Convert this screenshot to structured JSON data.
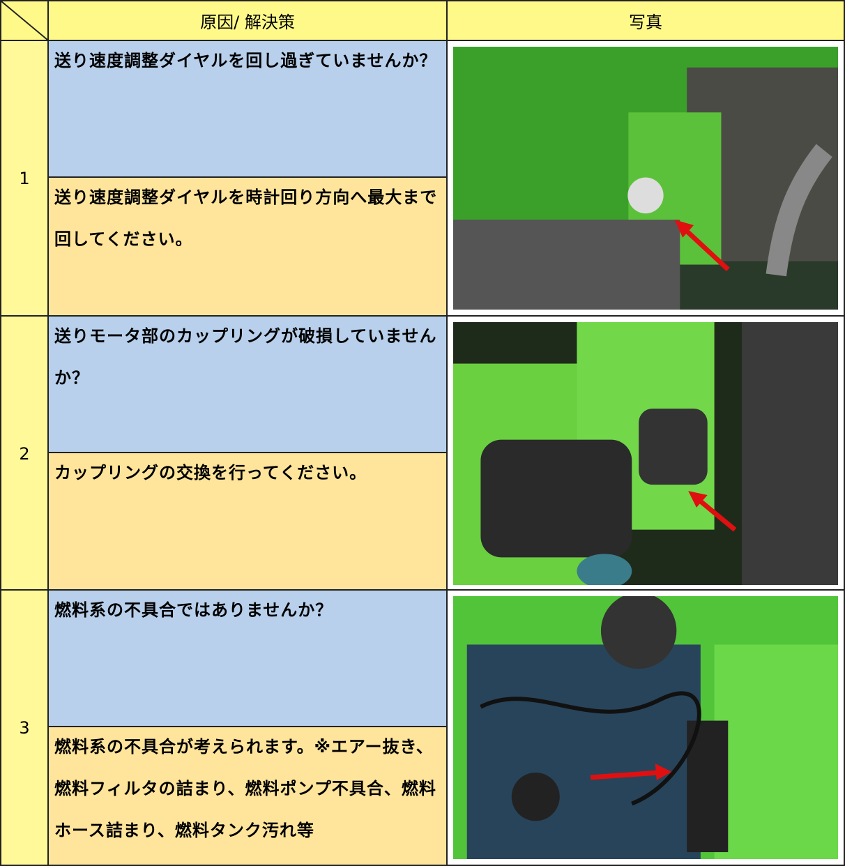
{
  "header": {
    "columns": [
      "原因/ 解決策",
      "写真"
    ]
  },
  "rows": [
    {
      "number": "1",
      "cause": "送り速度調整ダイヤルを回し過ぎていませんか？",
      "solution": "送り速度調整ダイヤルを時計回り方向へ最大まで回してください。"
    },
    {
      "number": "2",
      "cause": "送りモータ部のカップリングが破損していませんか？",
      "solution": "カップリングの交換を行ってください。"
    },
    {
      "number": "3",
      "cause": "燃料系の不具合ではありませんか？",
      "solution": "燃料系の不具合が考えられます。※エアー抜き、燃料フィルタの詰まり、燃料ポンプ不具合、燃料ホース詰まり、燃料タンク汚れ等"
    }
  ]
}
